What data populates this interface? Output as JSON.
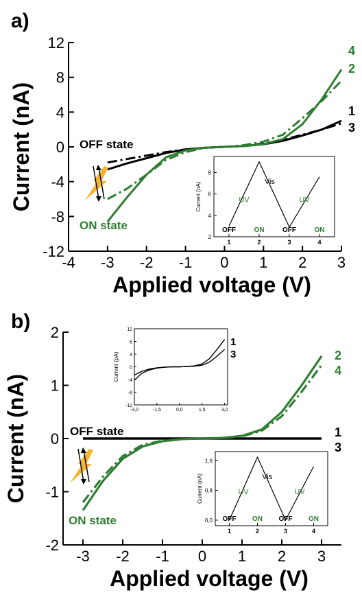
{
  "colors": {
    "black": "#000000",
    "green": "#2e7d32",
    "bolt": "#f5b62e"
  },
  "chart_data": [
    {
      "panel": "a)",
      "type": "line",
      "xlabel": "Applied voltage (V)",
      "ylabel": "Current (nA)",
      "xlim": [
        -4,
        3
      ],
      "ylim": [
        -12,
        12
      ],
      "xticks": [
        -4,
        -3,
        -2,
        -1,
        0,
        1,
        2,
        3
      ],
      "yticks": [
        -12,
        -8,
        -4,
        0,
        4,
        8,
        12
      ],
      "xtick_labels": [
        "-4",
        "-3",
        "-2",
        "-1",
        "0",
        "1",
        "2",
        "3"
      ],
      "ytick_labels": [
        "-12",
        "-8",
        "-4",
        "0",
        "4",
        "8",
        "12"
      ],
      "annotations": {
        "off_state": "OFF state",
        "on_state": "ON state"
      },
      "series": [
        {
          "name": "1",
          "color": "black",
          "dash": "solid",
          "x": [
            -3,
            -2.5,
            -2,
            -1.5,
            -1,
            -0.5,
            0,
            0.5,
            1,
            1.5,
            2,
            2.5,
            3
          ],
          "y": [
            -2.6,
            -1.9,
            -1.3,
            -0.7,
            -0.3,
            -0.1,
            0,
            0.1,
            0.3,
            0.7,
            1.3,
            2.0,
            3.0
          ]
        },
        {
          "name": "3",
          "color": "black",
          "dash": "dashdot",
          "x": [
            -3,
            -2.5,
            -2,
            -1.5,
            -1,
            -0.5,
            0,
            0.5,
            1,
            1.5,
            2,
            2.5,
            3
          ],
          "y": [
            -1.8,
            -1.4,
            -1.0,
            -0.6,
            -0.3,
            -0.1,
            0,
            0.1,
            0.4,
            0.8,
            1.4,
            2.0,
            2.7
          ]
        },
        {
          "name": "2",
          "color": "green",
          "dash": "dashdot",
          "x": [
            -3,
            -2.5,
            -2,
            -1.5,
            -1,
            -0.5,
            0,
            0.5,
            1,
            1.5,
            2,
            2.5,
            3
          ],
          "y": [
            -6.0,
            -4.8,
            -3.2,
            -1.5,
            -0.6,
            -0.1,
            0,
            0.2,
            0.6,
            1.4,
            3.3,
            5.3,
            7.6
          ]
        },
        {
          "name": "4",
          "color": "green",
          "dash": "solid",
          "x": [
            -3,
            -2.5,
            -2,
            -1.5,
            -1,
            -0.5,
            0,
            0.5,
            1,
            1.5,
            2,
            2.5,
            3
          ],
          "y": [
            -8.6,
            -5.8,
            -3.2,
            -1.2,
            -0.4,
            -0.1,
            0,
            0.1,
            0.3,
            0.9,
            2.6,
            5.5,
            8.9
          ]
        }
      ],
      "inset": {
        "ylabel": "Current (nA)",
        "ylim": [
          2,
          9.5
        ],
        "yticks": [
          2,
          4,
          6,
          8
        ],
        "ytick_labels": [
          "2",
          "4",
          "6",
          "8"
        ],
        "categories": [
          "1",
          "2",
          "3",
          "4"
        ],
        "trace_x": [
          1,
          2,
          3,
          4
        ],
        "trace_y": [
          3.0,
          9.0,
          2.9,
          7.6
        ],
        "labels": {
          "uv": "UV",
          "vis": "Vis",
          "off": "OFF",
          "on": "ON"
        }
      }
    },
    {
      "panel": "b)",
      "type": "line",
      "xlabel": "Applied voltage (V)",
      "ylabel": "Current (nA)",
      "xlim": [
        -3.5,
        3.5
      ],
      "ylim": [
        -2,
        2
      ],
      "xticks": [
        -3,
        -2,
        -1,
        0,
        1,
        2,
        3
      ],
      "yticks": [
        -2,
        -1,
        0,
        1,
        2
      ],
      "xtick_labels": [
        "-3",
        "-2",
        "-1",
        "0",
        "1",
        "2",
        "3"
      ],
      "ytick_labels": [
        "-2",
        "-1",
        "0",
        "1",
        "2"
      ],
      "annotations": {
        "off_state": "OFF state",
        "on_state": "ON state"
      },
      "series": [
        {
          "name": "1",
          "color": "black",
          "dash": "solid",
          "x": [
            -3,
            -2,
            -1,
            0,
            1,
            2,
            3
          ],
          "y": [
            0,
            0,
            0,
            0,
            0,
            0,
            0
          ]
        },
        {
          "name": "3",
          "color": "black",
          "dash": "solid",
          "x": [
            -3,
            -2,
            -1,
            0,
            1,
            2,
            3
          ],
          "y": [
            0,
            0,
            0,
            0,
            0,
            0,
            0
          ]
        },
        {
          "name": "2",
          "color": "green",
          "dash": "solid",
          "x": [
            -3,
            -2.5,
            -2,
            -1.5,
            -1,
            -0.5,
            0,
            0.5,
            1,
            1.5,
            2,
            2.5,
            3
          ],
          "y": [
            -1.35,
            -0.8,
            -0.38,
            -0.15,
            -0.05,
            -0.01,
            0,
            0.01,
            0.05,
            0.17,
            0.5,
            1.0,
            1.55
          ]
        },
        {
          "name": "4",
          "color": "green",
          "dash": "dashdot",
          "x": [
            -3,
            -2.5,
            -2,
            -1.5,
            -1,
            -0.5,
            0,
            0.5,
            1,
            1.5,
            2,
            2.5,
            3
          ],
          "y": [
            -1.2,
            -0.72,
            -0.33,
            -0.12,
            -0.04,
            -0.01,
            0,
            0.01,
            0.04,
            0.15,
            0.42,
            0.88,
            1.38
          ]
        }
      ],
      "inset_top": {
        "ylabel": "Current (pA)",
        "xlim": [
          -3.0,
          3.2
        ],
        "ylim": [
          -12,
          12
        ],
        "xticks": [
          -3.0,
          -1.5,
          0.0,
          1.5,
          3.0
        ],
        "yticks": [
          -12,
          -8,
          -4,
          0,
          4,
          8,
          12
        ],
        "xtick_labels": [
          "-3,0",
          "-1,5",
          "0,0",
          "1,5",
          "3,0"
        ],
        "ytick_labels": [
          "-12",
          "-8",
          "-4",
          "0",
          "4",
          "8",
          "12"
        ],
        "series": [
          {
            "name": "1",
            "x": [
              -3,
              -2.5,
              -2,
              -1.5,
              -1,
              -0.5,
              0,
              0.5,
              1,
              1.5,
              2,
              2.5,
              3
            ],
            "y": [
              -4.2,
              -2.0,
              -1.0,
              -0.4,
              -0.1,
              0,
              0,
              0.1,
              0.3,
              0.9,
              2.6,
              5.5,
              8.6
            ]
          },
          {
            "name": "3",
            "x": [
              -3,
              -2.5,
              -2,
              -1.5,
              -1,
              -0.5,
              0,
              0.5,
              1,
              1.5,
              2,
              2.5,
              3
            ],
            "y": [
              -2.6,
              -1.4,
              -0.7,
              -0.3,
              -0.1,
              0,
              0,
              0.1,
              0.2,
              0.5,
              1.5,
              3.4,
              5.5
            ]
          }
        ]
      },
      "inset": {
        "ylabel": "Current (nA)",
        "ylim": [
          -0.15,
          1.85
        ],
        "yticks": [
          0.0,
          0.8,
          1.6
        ],
        "ytick_labels": [
          "0,0",
          "0,8",
          "1,6"
        ],
        "categories": [
          "1",
          "2",
          "3",
          "4"
        ],
        "trace_x": [
          1,
          2,
          3,
          4
        ],
        "trace_y": [
          0.0,
          1.7,
          0.0,
          1.45
        ],
        "labels": {
          "uv": "UV",
          "vis": "Vis",
          "off": "OFF",
          "on": "ON"
        }
      }
    }
  ]
}
